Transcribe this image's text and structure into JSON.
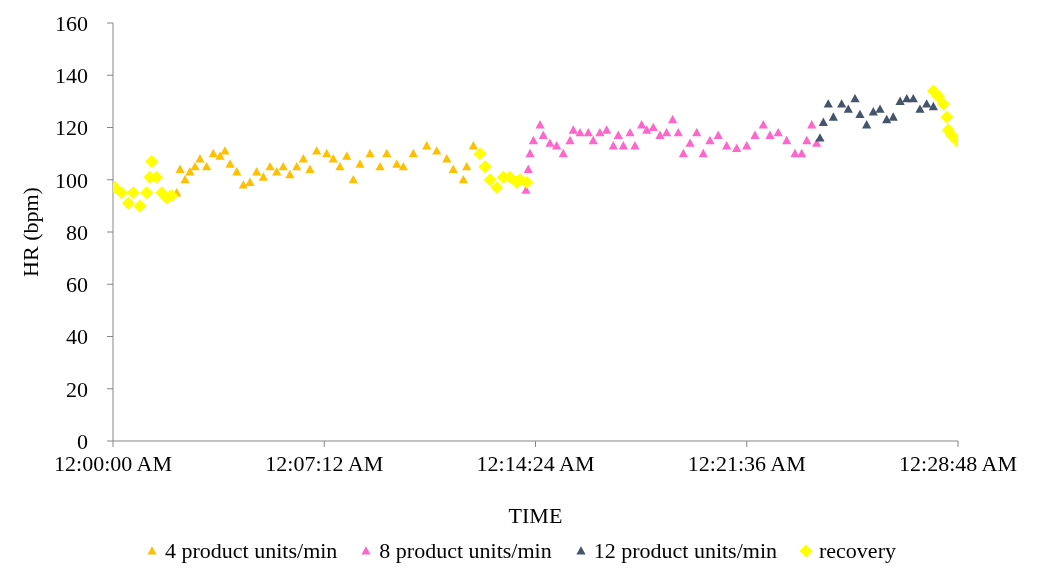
{
  "chart_data": {
    "type": "scatter",
    "xlabel": "TIME",
    "ylabel": "HR (bpm)",
    "xlim": [
      0,
      0.48
    ],
    "xticks": [
      {
        "value": 0,
        "label": "12:00:00 AM"
      },
      {
        "value": 0.12,
        "label": "12:07:12 AM"
      },
      {
        "value": 0.24,
        "label": "12:14:24 AM"
      },
      {
        "value": 0.36,
        "label": "12:21:36 AM"
      },
      {
        "value": 0.48,
        "label": "12:28:48 AM"
      }
    ],
    "ylim": [
      0,
      160
    ],
    "yticks": [
      0,
      20,
      40,
      60,
      80,
      100,
      120,
      140,
      160
    ],
    "legend": "bottom",
    "marker": "triangle",
    "series": [
      {
        "name": "4 product units/min",
        "color": "#ffc000",
        "x": [
          0.0362,
          0.0381,
          0.0409,
          0.0437,
          0.0466,
          0.0494,
          0.0532,
          0.057,
          0.0608,
          0.0636,
          0.0665,
          0.0703,
          0.074,
          0.0778,
          0.0816,
          0.0854,
          0.0892,
          0.093,
          0.0967,
          0.1005,
          0.1044,
          0.1081,
          0.1119,
          0.1157,
          0.1214,
          0.1251,
          0.1289,
          0.1328,
          0.1365,
          0.1403,
          0.146,
          0.1517,
          0.1555,
          0.1612,
          0.1649,
          0.1706,
          0.1782,
          0.1839,
          0.1896,
          0.1933,
          0.199,
          0.2009,
          0.2047
        ],
        "values": [
          95,
          104,
          100,
          103,
          105,
          108,
          105,
          110,
          109,
          111,
          106,
          103,
          98,
          99,
          103,
          101,
          105,
          103,
          105,
          102,
          105,
          108,
          104,
          111,
          110,
          108,
          105,
          109,
          100,
          106,
          110,
          105,
          110,
          106,
          105,
          110,
          113,
          111,
          108,
          104,
          100,
          105,
          113
        ]
      },
      {
        "name": "8 product units/min",
        "color": "#ff66cc",
        "x": [
          0.2346,
          0.2359,
          0.2369,
          0.2388,
          0.2426,
          0.2444,
          0.2482,
          0.252,
          0.2558,
          0.2596,
          0.2615,
          0.2653,
          0.27,
          0.2728,
          0.2766,
          0.2804,
          0.2842,
          0.287,
          0.2899,
          0.2937,
          0.2965,
          0.3003,
          0.3032,
          0.3069,
          0.3107,
          0.3145,
          0.3179,
          0.3211,
          0.324,
          0.3278,
          0.3316,
          0.3353,
          0.3391,
          0.3438,
          0.3486,
          0.3543,
          0.36,
          0.3647,
          0.3694,
          0.3732,
          0.3779,
          0.3827,
          0.3874,
          0.3912,
          0.3941,
          0.3969,
          0.3997
        ],
        "values": [
          96,
          104,
          110,
          115,
          121,
          117,
          114,
          113,
          110,
          115,
          119,
          118,
          118,
          115,
          118,
          119,
          113,
          117,
          113,
          118,
          113,
          121,
          119,
          120,
          117,
          118,
          123,
          118,
          110,
          114,
          118,
          110,
          115,
          117,
          113,
          112,
          113,
          117,
          121,
          117,
          118,
          115,
          110,
          110,
          115,
          121,
          114
        ]
      },
      {
        "name": "12 product units/min",
        "color": "#44546a",
        "x": [
          0.4016,
          0.4035,
          0.4063,
          0.4092,
          0.4139,
          0.4177,
          0.4215,
          0.4243,
          0.4281,
          0.4319,
          0.4357,
          0.4395,
          0.4432,
          0.4471,
          0.4509,
          0.4546,
          0.4584,
          0.4622,
          0.466
        ],
        "values": [
          116,
          122,
          129,
          124,
          129,
          127,
          131,
          125,
          121,
          126,
          127,
          123,
          124,
          130,
          131,
          131,
          127,
          129,
          128
        ]
      },
      {
        "name": "recovery",
        "color": "#ffff00",
        "marker": "diamond",
        "x": [
          0.0011,
          0.0049,
          0.0087,
          0.0115,
          0.0153,
          0.0191,
          0.021,
          0.022,
          0.0248,
          0.0277,
          0.0305,
          0.0333,
          0.2085,
          0.2113,
          0.2142,
          0.218,
          0.2217,
          0.2255,
          0.2293,
          0.2312,
          0.235,
          0.466,
          0.4688,
          0.4717,
          0.4736,
          0.4745,
          0.4764,
          0.4793
        ],
        "values": [
          97,
          95,
          91,
          95,
          90,
          95,
          101,
          107,
          101,
          95,
          93,
          94,
          110,
          105,
          100,
          97,
          101,
          101,
          99,
          100,
          99,
          134,
          132,
          129,
          124,
          119,
          117,
          115
        ]
      }
    ]
  }
}
